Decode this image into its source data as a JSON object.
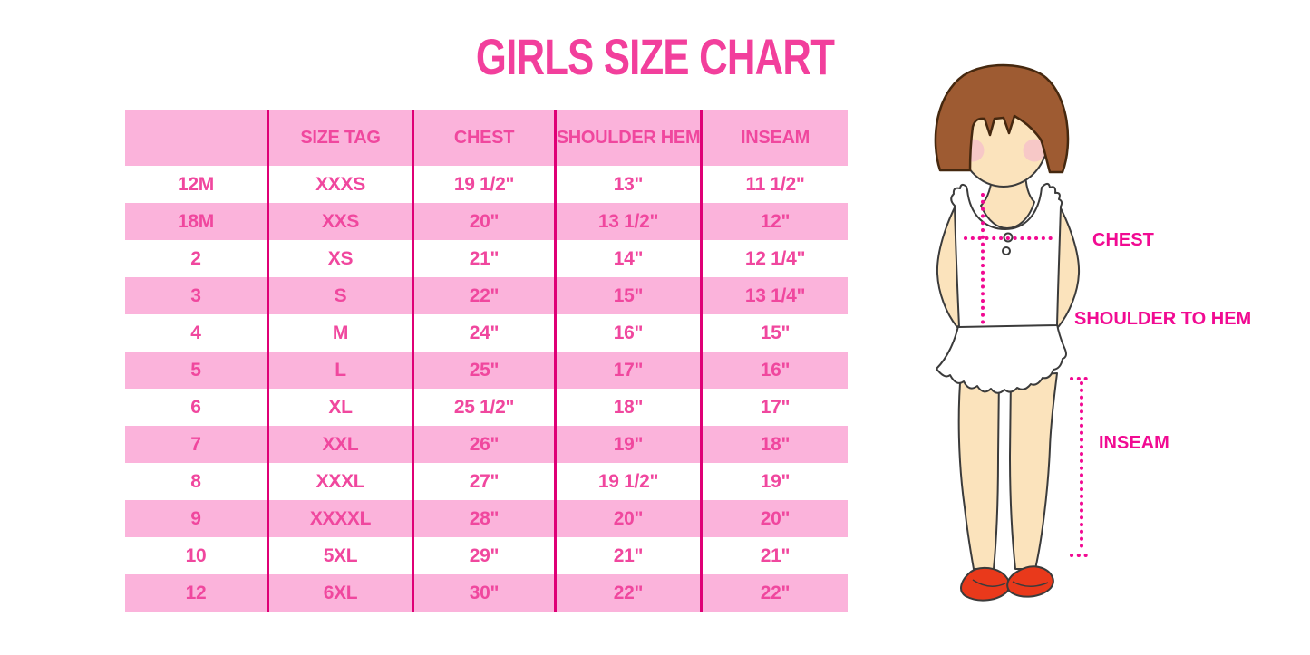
{
  "title": "GIRLS SIZE CHART",
  "colors": {
    "title_pink": "#F23F9C",
    "row_pink": "#FBB3DB",
    "table_text_pink": "#F0479E",
    "divider_magenta": "#DF0076",
    "label_magenta": "#F10A92",
    "hair_brown": "#9E5B32",
    "skin": "#FBE3BC",
    "shoe_red": "#E9391B"
  },
  "chart_data": {
    "type": "table",
    "title": "GIRLS SIZE CHART",
    "columns": [
      "",
      "SIZE TAG",
      "CHEST",
      "SHOULDER HEM",
      "INSEAM"
    ],
    "rows": [
      [
        "12M",
        "XXXS",
        "19 1/2\"",
        "13\"",
        "11 1/2\""
      ],
      [
        "18M",
        "XXS",
        "20\"",
        "13 1/2\"",
        "12\""
      ],
      [
        "2",
        "XS",
        "21\"",
        "14\"",
        "12 1/4\""
      ],
      [
        "3",
        "S",
        "22\"",
        "15\"",
        "13 1/4\""
      ],
      [
        "4",
        "M",
        "24\"",
        "16\"",
        "15\""
      ],
      [
        "5",
        "L",
        "25\"",
        "17\"",
        "16\""
      ],
      [
        "6",
        "XL",
        "25 1/2\"",
        "18\"",
        "17\""
      ],
      [
        "7",
        "XXL",
        "26\"",
        "19\"",
        "18\""
      ],
      [
        "8",
        "XXXL",
        "27\"",
        "19 1/2\"",
        "19\""
      ],
      [
        "9",
        "XXXXL",
        "28\"",
        "20\"",
        "20\""
      ],
      [
        "10",
        "5XL",
        "29\"",
        "21\"",
        "21\""
      ],
      [
        "12",
        "6XL",
        "30\"",
        "22\"",
        "22\""
      ]
    ]
  },
  "figure": {
    "labels": {
      "chest": "CHEST",
      "shoulder_to_hem": "SHOULDER TO HEM",
      "inseam": "INSEAM"
    }
  }
}
